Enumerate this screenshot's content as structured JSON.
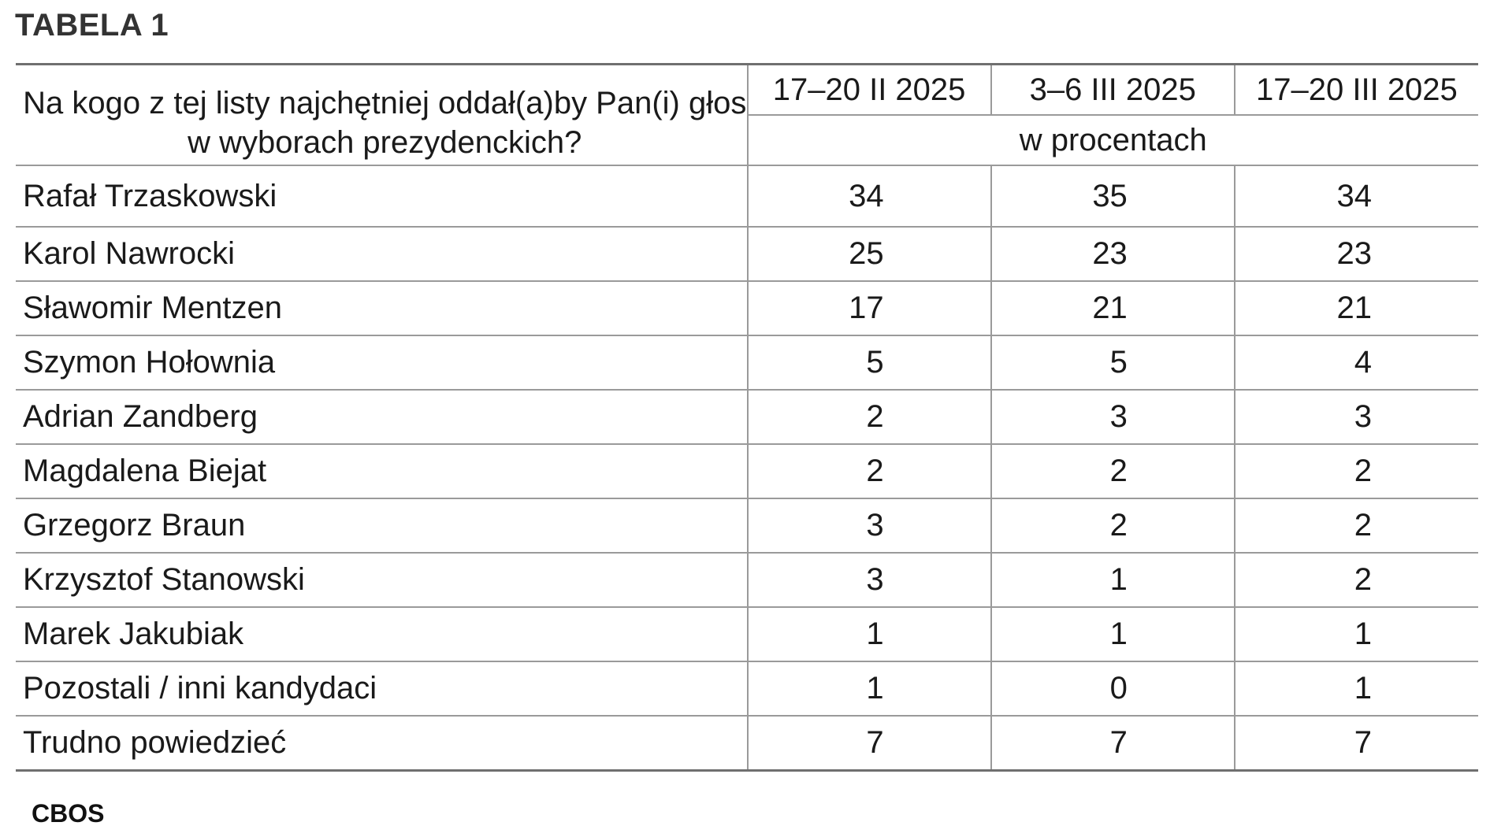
{
  "title": "TABELA 1",
  "source": "CBOS",
  "chart_data": {
    "type": "table",
    "question": "Na kogo z tej listy najchętniej oddał(a)by Pan(i) głos w wyborach prezydenckich?",
    "unit": "w procentach",
    "columns": [
      "17–20 II 2025",
      "3–6 III 2025",
      "17–20 III 2025"
    ],
    "rows": [
      {
        "label": "Rafał Trzaskowski",
        "values": [
          "34",
          "35",
          "34"
        ]
      },
      {
        "label": "Karol Nawrocki",
        "values": [
          "25",
          "23",
          "23"
        ]
      },
      {
        "label": "Sławomir Mentzen",
        "values": [
          "17",
          "21",
          "21"
        ]
      },
      {
        "label": "Szymon Hołownia",
        "values": [
          "5",
          "5",
          "4"
        ]
      },
      {
        "label": "Adrian Zandberg",
        "values": [
          "2",
          "3",
          "3"
        ]
      },
      {
        "label": "Magdalena Biejat",
        "values": [
          "2",
          "2",
          "2"
        ]
      },
      {
        "label": "Grzegorz Braun",
        "values": [
          "3",
          "2",
          "2"
        ]
      },
      {
        "label": "Krzysztof Stanowski",
        "values": [
          "3",
          "1",
          "2"
        ]
      },
      {
        "label": "Marek Jakubiak",
        "values": [
          "1",
          "1",
          "1"
        ]
      },
      {
        "label": "Pozostali / inni kandydaci",
        "values": [
          "1",
          "0",
          "1"
        ]
      },
      {
        "label": "Trudno powiedzieć",
        "values": [
          "7",
          "7",
          "7"
        ]
      }
    ]
  }
}
